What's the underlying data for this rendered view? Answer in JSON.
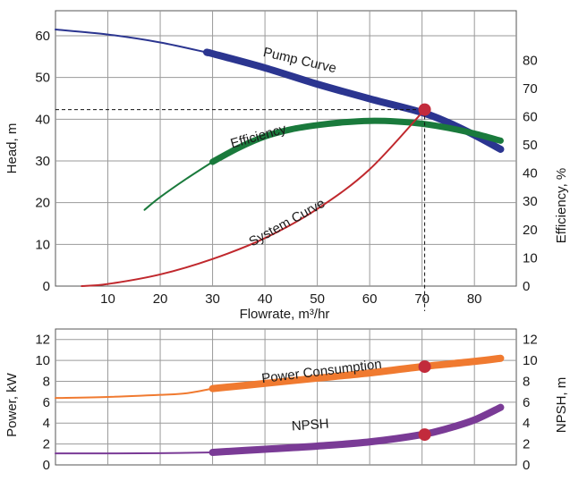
{
  "chart_data": [
    {
      "type": "line",
      "grid": true,
      "xlabel": "Flowrate, m³/hr",
      "ylabel": "Head, m",
      "y2label": "Efficiency, %",
      "xlim": [
        0,
        88
      ],
      "ylim": [
        0,
        66
      ],
      "y2lim": [
        0,
        97.5
      ],
      "x_ticks": [
        10,
        20,
        30,
        40,
        50,
        60,
        70,
        80
      ],
      "y_ticks": [
        0,
        10,
        20,
        30,
        40,
        50,
        60
      ],
      "y2_ticks": [
        0,
        10,
        20,
        30,
        40,
        50,
        60,
        70,
        80
      ],
      "series": [
        {
          "name": "Pump Curve",
          "axis": "left",
          "color": "#2b3590",
          "x": [
            0,
            10,
            20,
            30,
            40,
            50,
            60,
            70,
            75,
            80,
            85
          ],
          "y": [
            61.5,
            60.3,
            58.4,
            55.7,
            52.3,
            48.4,
            44.9,
            41.6,
            39.2,
            36.2,
            32.8
          ],
          "bold_from_x": 29
        },
        {
          "name": "Efficiency",
          "axis": "right",
          "color": "#1a7a3c",
          "x": [
            17,
            20,
            25,
            30,
            35,
            40,
            45,
            50,
            55,
            60,
            65,
            70,
            75,
            80,
            85
          ],
          "y": [
            27,
            31.5,
            38,
            44,
            49,
            53,
            55.5,
            57,
            58,
            58.5,
            58.3,
            57.5,
            56,
            54,
            51.5
          ],
          "bold_from_x": 30
        },
        {
          "name": "System Curve",
          "axis": "left",
          "color": "#c0282d",
          "x": [
            5,
            10,
            20,
            30,
            40,
            50,
            60,
            70.5
          ],
          "y": [
            0,
            0.5,
            2.8,
            6.5,
            11.5,
            18.5,
            28,
            42.3
          ]
        }
      ],
      "operating_point": {
        "x": 70.5,
        "y": 42.3
      }
    },
    {
      "type": "line",
      "grid": true,
      "xlabel": "",
      "ylabel": "Power, kW",
      "y2label": "NPSH, m",
      "xlim": [
        0,
        88
      ],
      "ylim": [
        0,
        13
      ],
      "y_ticks": [
        0,
        2,
        4,
        6,
        8,
        10,
        12
      ],
      "y2_ticks": [
        0,
        2,
        4,
        6,
        8,
        10,
        12
      ],
      "series": [
        {
          "name": "Power Consumption",
          "color": "#f07a30",
          "x": [
            0,
            10,
            20,
            25,
            30,
            40,
            50,
            60,
            70,
            80,
            85
          ],
          "y": [
            6.4,
            6.5,
            6.7,
            6.85,
            7.3,
            7.8,
            8.3,
            8.8,
            9.4,
            9.9,
            10.2
          ],
          "bold_from_x": 30
        },
        {
          "name": "NPSH",
          "color": "#7a3b96",
          "x": [
            0,
            10,
            20,
            30,
            40,
            50,
            60,
            70,
            75,
            80,
            85
          ],
          "y": [
            1.1,
            1.1,
            1.12,
            1.2,
            1.5,
            1.8,
            2.2,
            2.9,
            3.5,
            4.3,
            5.5
          ],
          "bold_from_x": 30
        }
      ],
      "markers": [
        {
          "series": "Power Consumption",
          "x": 70.5,
          "y": 9.4
        },
        {
          "series": "NPSH",
          "x": 70.5,
          "y": 2.9
        }
      ]
    }
  ],
  "colors": {
    "grid": "#9a9a9a",
    "marker": "#c22b3c",
    "text": "#1a1a1a"
  }
}
